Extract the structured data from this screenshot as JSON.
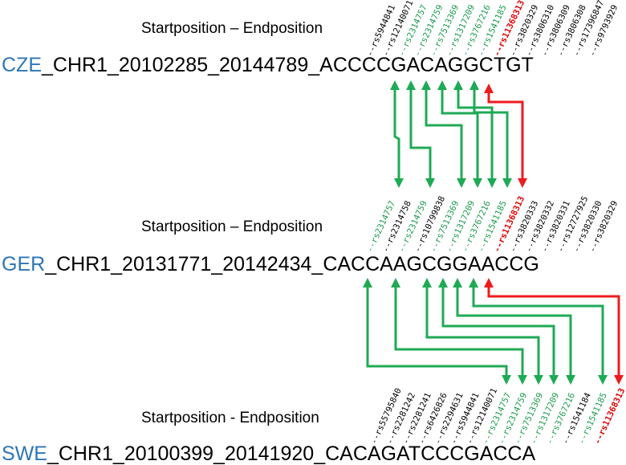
{
  "blocks": [
    {
      "position_label": "Startposition – Endposition",
      "country": "CZE",
      "rest": "_CHR1_20102285_20144789_ACCCCGACAGGCTGT",
      "snps": [
        {
          "label": "rs5944841",
          "color": "black"
        },
        {
          "label": "rs12140071",
          "color": "black"
        },
        {
          "label": "rs2314757",
          "color": "green"
        },
        {
          "label": "rs2314759",
          "color": "green"
        },
        {
          "label": "rs7513369",
          "color": "green"
        },
        {
          "label": "rs1317209",
          "color": "green"
        },
        {
          "label": "rs3767216",
          "color": "green"
        },
        {
          "label": "rs1541185",
          "color": "green"
        },
        {
          "label": "rs11368313",
          "color": "red"
        },
        {
          "label": "rs3820329",
          "color": "black"
        },
        {
          "label": "rs3806310",
          "color": "black"
        },
        {
          "label": "rs3806309",
          "color": "black"
        },
        {
          "label": "rs3806308",
          "color": "black"
        },
        {
          "label": "rs17396847",
          "color": "black"
        },
        {
          "label": "rs9793929",
          "color": "black"
        }
      ]
    },
    {
      "position_label": "Startposition – Endposition",
      "country": "GER",
      "rest": "_CHR1_20131771_20142434_CACCAAGCGGAACCG",
      "snps": [
        {
          "label": "rs2314757",
          "color": "green"
        },
        {
          "label": "rs2314758",
          "color": "black"
        },
        {
          "label": "rs2314759",
          "color": "green"
        },
        {
          "label": "rs10799838",
          "color": "black"
        },
        {
          "label": "rs7513369",
          "color": "green"
        },
        {
          "label": "rs1317209",
          "color": "green"
        },
        {
          "label": "rs3767216",
          "color": "green"
        },
        {
          "label": "rs1541185",
          "color": "green"
        },
        {
          "label": "rs11368313",
          "color": "red"
        },
        {
          "label": "rs3820333",
          "color": "black"
        },
        {
          "label": "rs3820332",
          "color": "black"
        },
        {
          "label": "rs3820331",
          "color": "black"
        },
        {
          "label": "rs12727925",
          "color": "black"
        },
        {
          "label": "rs3820330",
          "color": "black"
        },
        {
          "label": "rs3820329",
          "color": "black"
        }
      ]
    },
    {
      "position_label": "Startposition - Endposition",
      "country": "SWE",
      "rest": "_CHR1_20100399_20141920_CACAGATCCCGACCA",
      "snps": [
        {
          "label": "rs55795840",
          "color": "black"
        },
        {
          "label": "rs2281242",
          "color": "black"
        },
        {
          "label": "rs2281241",
          "color": "black"
        },
        {
          "label": "rs6426826",
          "color": "black"
        },
        {
          "label": "rs2294631",
          "color": "black"
        },
        {
          "label": "rs5944841",
          "color": "black"
        },
        {
          "label": "rs12140071",
          "color": "black"
        },
        {
          "label": "rs2314757",
          "color": "green"
        },
        {
          "label": "rs2314759",
          "color": "green"
        },
        {
          "label": "rs7513369",
          "color": "green"
        },
        {
          "label": "rs1317209",
          "color": "green"
        },
        {
          "label": "rs3767216",
          "color": "green"
        },
        {
          "label": "rs1541184",
          "color": "black"
        },
        {
          "label": "rs1541185",
          "color": "green"
        },
        {
          "label": "rs11368313",
          "color": "red"
        }
      ]
    }
  ],
  "colors": {
    "country": "#2e75b6",
    "shared_snp": "#1a9a4b",
    "connector_green": "#1faa55",
    "highlight_snp": "#e00000",
    "connector_red": "#ee1c1c"
  },
  "connections": [
    {
      "from_block": 0,
      "to_block": 1,
      "pairs": [
        [
          2,
          0
        ],
        [
          3,
          2
        ],
        [
          4,
          4
        ],
        [
          5,
          5
        ],
        [
          6,
          6
        ],
        [
          7,
          7
        ],
        [
          8,
          8
        ]
      ]
    },
    {
      "from_block": 1,
      "to_block": 2,
      "pairs": [
        [
          0,
          7
        ],
        [
          2,
          8
        ],
        [
          4,
          9
        ],
        [
          5,
          10
        ],
        [
          6,
          11
        ],
        [
          7,
          13
        ],
        [
          8,
          14
        ]
      ]
    }
  ]
}
